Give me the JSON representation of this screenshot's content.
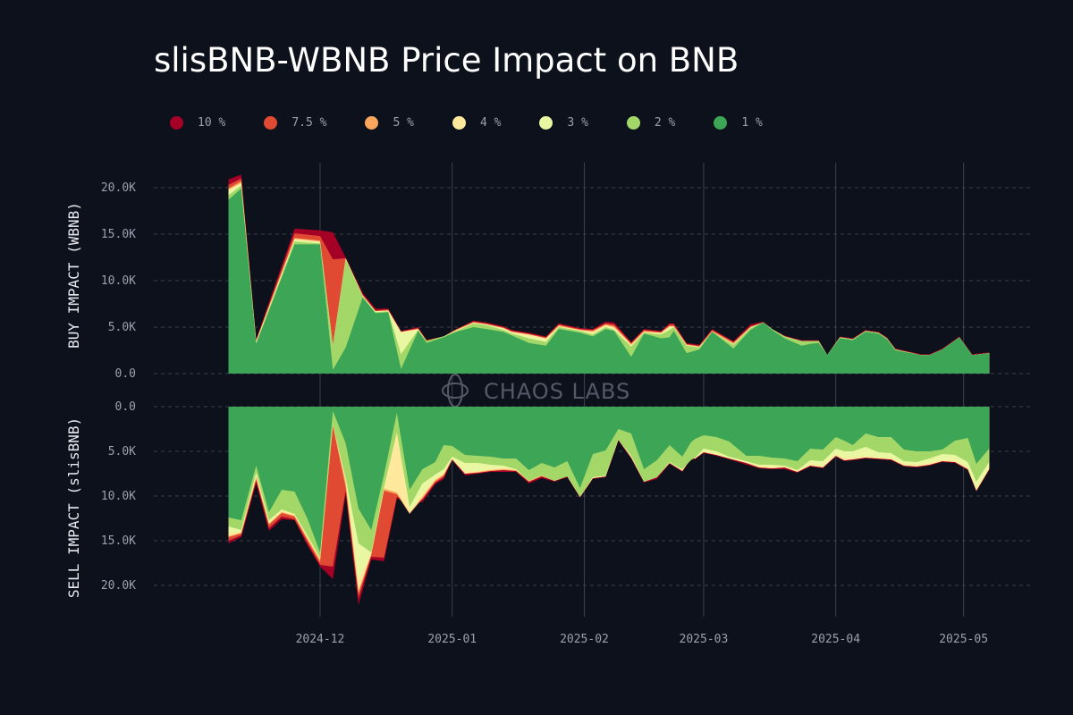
{
  "chart_data": {
    "type": "area",
    "title": "slisBNB-WBNB Price Impact on BNB",
    "watermark": "CHAOS LABS",
    "legend": [
      {
        "label": "10 %",
        "color": "#a50026"
      },
      {
        "label": "7.5 %",
        "color": "#e04a33"
      },
      {
        "label": "5 %",
        "color": "#fca55d"
      },
      {
        "label": "4 %",
        "color": "#fee99d"
      },
      {
        "label": "3 %",
        "color": "#e9f6a2"
      },
      {
        "label": "2 %",
        "color": "#a3d869"
      },
      {
        "label": "1 %",
        "color": "#3ca556"
      }
    ],
    "x_ticks": [
      {
        "label": "2024-12",
        "day": 30
      },
      {
        "label": "2025-01",
        "day": 61
      },
      {
        "label": "2025-02",
        "day": 92
      },
      {
        "label": "2025-03",
        "day": 120
      },
      {
        "label": "2025-04",
        "day": 151
      },
      {
        "label": "2025-05",
        "day": 181
      }
    ],
    "x_domain_days": [
      0,
      188
    ],
    "x_note": "day = days since 2024-11-01",
    "buy": {
      "ylabel": "BUY IMPACT (WBNB)",
      "ylim": [
        0,
        22000
      ],
      "y_ticks": [
        "0.0",
        "5.0K",
        "10.0K",
        "15.0K",
        "20.0K"
      ],
      "y_tick_values": [
        0,
        5000,
        10000,
        15000,
        20000
      ],
      "days": [
        8.5,
        11.5,
        15,
        24,
        30,
        33,
        36,
        40,
        43,
        46,
        49,
        53,
        55,
        59,
        62,
        66,
        69,
        73,
        75,
        79,
        83,
        86,
        91,
        94,
        97,
        99,
        103,
        106,
        110,
        112,
        113,
        116,
        119,
        122,
        127,
        131,
        134,
        136,
        139,
        143,
        145,
        147,
        149,
        152,
        155,
        158,
        161,
        163,
        165,
        171,
        173,
        176,
        180,
        183,
        187
      ],
      "series": [
        {
          "name": "1 %",
          "values": [
            18700,
            19900,
            3200,
            13900,
            13900,
            400,
            2800,
            8200,
            6500,
            6600,
            500,
            4600,
            3300,
            3900,
            4500,
            5000,
            4800,
            4500,
            4100,
            3300,
            3000,
            4800,
            4400,
            4000,
            4800,
            4600,
            1800,
            4300,
            3800,
            3900,
            4600,
            2200,
            2600,
            4500,
            2700,
            4700,
            5500,
            4700,
            3800,
            3000,
            3200,
            3300,
            2000,
            3800,
            3600,
            4500,
            4300,
            3700,
            2500,
            2000,
            2000,
            2600,
            3900,
            2000,
            2200
          ]
        },
        {
          "name": "2 %",
          "values": [
            19200,
            20200,
            3300,
            14200,
            14000,
            3000,
            12300,
            8300,
            6600,
            6700,
            2100,
            4700,
            3500,
            4000,
            4600,
            5400,
            5200,
            4700,
            4300,
            3800,
            3400,
            5000,
            4600,
            4200,
            5000,
            4700,
            2900,
            4400,
            4200,
            4700,
            5000,
            3000,
            2800,
            4500,
            3100,
            4900,
            5500,
            4800,
            4000,
            3500,
            3500,
            3500,
            2000,
            3900,
            3700,
            4600,
            4400,
            3800,
            2600,
            2000,
            2000,
            2600,
            3900,
            2000,
            2200
          ]
        },
        {
          "name": "3 %",
          "values": [
            19600,
            20400,
            3400,
            14400,
            14100,
            3000,
            12300,
            8300,
            6700,
            6700,
            4300,
            4700,
            3500,
            4000,
            4600,
            5400,
            5300,
            4800,
            4400,
            4000,
            3600,
            5000,
            4600,
            4300,
            5100,
            4800,
            3000,
            4400,
            4300,
            5000,
            5000,
            3000,
            2800,
            4500,
            3100,
            4900,
            5500,
            4800,
            4000,
            3500,
            3500,
            3500,
            2000,
            3900,
            3700,
            4600,
            4400,
            3800,
            2600,
            2000,
            2000,
            2600,
            3900,
            2000,
            2200
          ]
        },
        {
          "name": "4 %",
          "values": [
            19800,
            20500,
            3500,
            14500,
            14200,
            3000,
            12400,
            8400,
            6700,
            6800,
            4500,
            4800,
            3500,
            4000,
            4700,
            5500,
            5300,
            4900,
            4500,
            4200,
            3800,
            5100,
            4700,
            4500,
            5200,
            5000,
            3100,
            4500,
            4400,
            5100,
            5100,
            3100,
            2900,
            4500,
            3200,
            5000,
            5500,
            4800,
            4000,
            3500,
            3500,
            3500,
            2000,
            3900,
            3700,
            4600,
            4400,
            3800,
            2600,
            2000,
            2000,
            2600,
            3900,
            2000,
            2200
          ]
        },
        {
          "name": "5 %",
          "values": [
            19900,
            20700,
            3500,
            14600,
            14300,
            3000,
            12400,
            8400,
            6700,
            6800,
            4500,
            4800,
            3500,
            4000,
            4700,
            5500,
            5300,
            4900,
            4500,
            4200,
            3800,
            5200,
            4700,
            4600,
            5300,
            5100,
            3200,
            4600,
            4400,
            5100,
            5100,
            3100,
            2900,
            4600,
            3300,
            5000,
            5500,
            4800,
            4000,
            3500,
            3500,
            3500,
            2000,
            3900,
            3700,
            4600,
            4400,
            3800,
            2600,
            2000,
            2000,
            2600,
            3900,
            2000,
            2200
          ]
        },
        {
          "name": "7.5 %",
          "values": [
            20300,
            21000,
            3600,
            15100,
            14800,
            12300,
            12400,
            8500,
            6800,
            6900,
            4500,
            4900,
            3600,
            4000,
            4800,
            5600,
            5400,
            5000,
            4600,
            4300,
            3900,
            5300,
            4800,
            4700,
            5400,
            5300,
            3300,
            4700,
            4500,
            5300,
            5300,
            3200,
            3000,
            4700,
            3400,
            5100,
            5500,
            4800,
            4000,
            3500,
            3500,
            3500,
            2000,
            3900,
            3700,
            4600,
            4400,
            3800,
            2600,
            2000,
            2000,
            2600,
            3900,
            2000,
            2200
          ]
        },
        {
          "name": "10 %",
          "values": [
            20900,
            21400,
            3700,
            15600,
            15400,
            15200,
            12500,
            8700,
            7000,
            7000,
            4600,
            5000,
            3600,
            4000,
            4800,
            5700,
            5500,
            5100,
            4700,
            4400,
            4000,
            5400,
            4900,
            4800,
            5600,
            5500,
            3400,
            4800,
            4600,
            5400,
            5400,
            3300,
            3100,
            4800,
            3500,
            5300,
            5600,
            4800,
            4100,
            3600,
            3600,
            3600,
            2000,
            4000,
            3800,
            4700,
            4500,
            3900,
            2700,
            2100,
            2100,
            2700,
            4000,
            2100,
            2300
          ]
        }
      ]
    },
    "sell": {
      "ylabel": "SELL IMPACT (slisBNB)",
      "ylim": [
        0,
        22500
      ],
      "y_ticks": [
        "0.0",
        "5.0K",
        "10.0K",
        "15.0K",
        "20.0K"
      ],
      "y_tick_values": [
        0,
        5000,
        10000,
        15000,
        20000
      ],
      "days": [
        8.5,
        11.5,
        15,
        18,
        21,
        24,
        27,
        30,
        33,
        36,
        39,
        42,
        45,
        48,
        51,
        54,
        57,
        59,
        61,
        64,
        67,
        70,
        73,
        76,
        79,
        82,
        85,
        88,
        91,
        94,
        97,
        100,
        103,
        106,
        109,
        112,
        115,
        117,
        118,
        120,
        123,
        126,
        130,
        133,
        136,
        139,
        142,
        145,
        148,
        151,
        153,
        155,
        158,
        161,
        164,
        167,
        170,
        173,
        176,
        179,
        182,
        184,
        187
      ],
      "series": [
        {
          "name": "1 %",
          "values": [
            12400,
            12700,
            6600,
            11800,
            9300,
            9500,
            12500,
            16300,
            500,
            4100,
            11400,
            13800,
            7600,
            700,
            9300,
            7000,
            6200,
            4300,
            4400,
            5400,
            5500,
            5600,
            5800,
            5800,
            7100,
            6300,
            6800,
            6100,
            9100,
            5300,
            4900,
            2500,
            3000,
            7000,
            6000,
            4300,
            5600,
            4000,
            3600,
            3200,
            3400,
            3900,
            5500,
            5500,
            5700,
            5800,
            6100,
            4700,
            4800,
            3400,
            3800,
            4300,
            3000,
            3400,
            3400,
            4800,
            5000,
            5000,
            4800,
            3800,
            3500,
            6400,
            4700
          ]
        },
        {
          "name": "2 %",
          "values": [
            13400,
            13800,
            7400,
            12700,
            11500,
            12000,
            14400,
            16900,
            2000,
            8000,
            15300,
            16300,
            9000,
            2900,
            11200,
            8600,
            7600,
            7000,
            5600,
            6300,
            6300,
            6500,
            6600,
            7000,
            8300,
            7700,
            8300,
            7800,
            10100,
            7900,
            7700,
            3700,
            5500,
            8400,
            7900,
            6200,
            7000,
            6000,
            5700,
            4700,
            5000,
            5600,
            6100,
            6500,
            6500,
            6600,
            7100,
            6000,
            6100,
            4700,
            5000,
            5000,
            4500,
            5100,
            5200,
            6100,
            6200,
            5800,
            5300,
            5400,
            6200,
            8400,
            6200
          ]
        },
        {
          "name": "3 %",
          "values": [
            14100,
            14000,
            7700,
            13000,
            11600,
            12100,
            14600,
            17000,
            2000,
            8200,
            19400,
            16400,
            9100,
            2900,
            11800,
            9800,
            8100,
            7400,
            5800,
            7200,
            7200,
            7000,
            6800,
            7100,
            8300,
            7700,
            8300,
            7800,
            10100,
            8000,
            7800,
            3700,
            5600,
            8400,
            7900,
            6300,
            7100,
            5700,
            5800,
            5000,
            5300,
            5800,
            6200,
            6600,
            6700,
            6700,
            7200,
            6400,
            6600,
            5300,
            5700,
            5700,
            5600,
            5700,
            5800,
            6400,
            6500,
            6300,
            6000,
            6000,
            6800,
            9200,
            6800
          ]
        },
        {
          "name": "4 %",
          "values": [
            14500,
            14100,
            7900,
            13100,
            11800,
            12200,
            14700,
            17100,
            2000,
            8500,
            20600,
            16500,
            9200,
            9600,
            11900,
            10100,
            8200,
            7600,
            5900,
            7500,
            7300,
            7100,
            7000,
            7100,
            8300,
            7700,
            8300,
            7800,
            10100,
            8000,
            7800,
            3700,
            5700,
            8400,
            7900,
            6300,
            7200,
            5800,
            5800,
            5100,
            5400,
            5800,
            6300,
            6800,
            6900,
            6800,
            7300,
            6600,
            6800,
            5500,
            6000,
            5900,
            5700,
            5800,
            5900,
            6600,
            6700,
            6500,
            6100,
            6200,
            7000,
            9400,
            7000
          ]
        },
        {
          "name": "5 %",
          "values": [
            14600,
            14200,
            8100,
            13200,
            11900,
            12300,
            14900,
            17400,
            2200,
            9000,
            20900,
            16600,
            9400,
            9800,
            12000,
            10300,
            8400,
            7700,
            5900,
            7500,
            7400,
            7200,
            7100,
            7200,
            8400,
            7800,
            8300,
            7800,
            10100,
            8000,
            7800,
            3700,
            5700,
            8400,
            7900,
            6300,
            7200,
            5800,
            5800,
            5100,
            5400,
            5800,
            6300,
            6800,
            6900,
            6800,
            7300,
            6600,
            6800,
            5500,
            6000,
            5900,
            5700,
            5800,
            5900,
            6600,
            6700,
            6500,
            6100,
            6200,
            7000,
            9400,
            7000
          ]
        },
        {
          "name": "7.5 %",
          "values": [
            15000,
            14400,
            8300,
            13600,
            12300,
            12600,
            15200,
            17700,
            17900,
            9400,
            21400,
            16800,
            16900,
            10100,
            10400,
            10400,
            8500,
            7900,
            5900,
            7500,
            7400,
            7200,
            7100,
            7200,
            8400,
            7800,
            8300,
            7800,
            10100,
            8000,
            7800,
            3700,
            5700,
            8400,
            7900,
            6300,
            7200,
            5800,
            5800,
            5100,
            5400,
            5800,
            6300,
            6800,
            6900,
            6800,
            7300,
            6600,
            6800,
            5500,
            6000,
            5900,
            5700,
            5800,
            5900,
            6600,
            6700,
            6500,
            6100,
            6200,
            7000,
            9400,
            7000
          ]
        },
        {
          "name": "10 %",
          "values": [
            15300,
            14600,
            8600,
            13900,
            12600,
            12700,
            15500,
            17900,
            19300,
            9800,
            22200,
            17100,
            17300,
            10300,
            10700,
            10700,
            8700,
            8100,
            6000,
            7700,
            7500,
            7300,
            7300,
            7300,
            8600,
            8000,
            8400,
            7900,
            10200,
            8100,
            7900,
            3800,
            5800,
            8500,
            8100,
            6400,
            7300,
            5900,
            5900,
            5200,
            5500,
            5900,
            6500,
            6900,
            7000,
            7000,
            7400,
            6700,
            6900,
            5600,
            6100,
            6000,
            5800,
            5900,
            6000,
            6700,
            6800,
            6600,
            6200,
            6300,
            7100,
            9500,
            7100
          ]
        }
      ]
    }
  }
}
